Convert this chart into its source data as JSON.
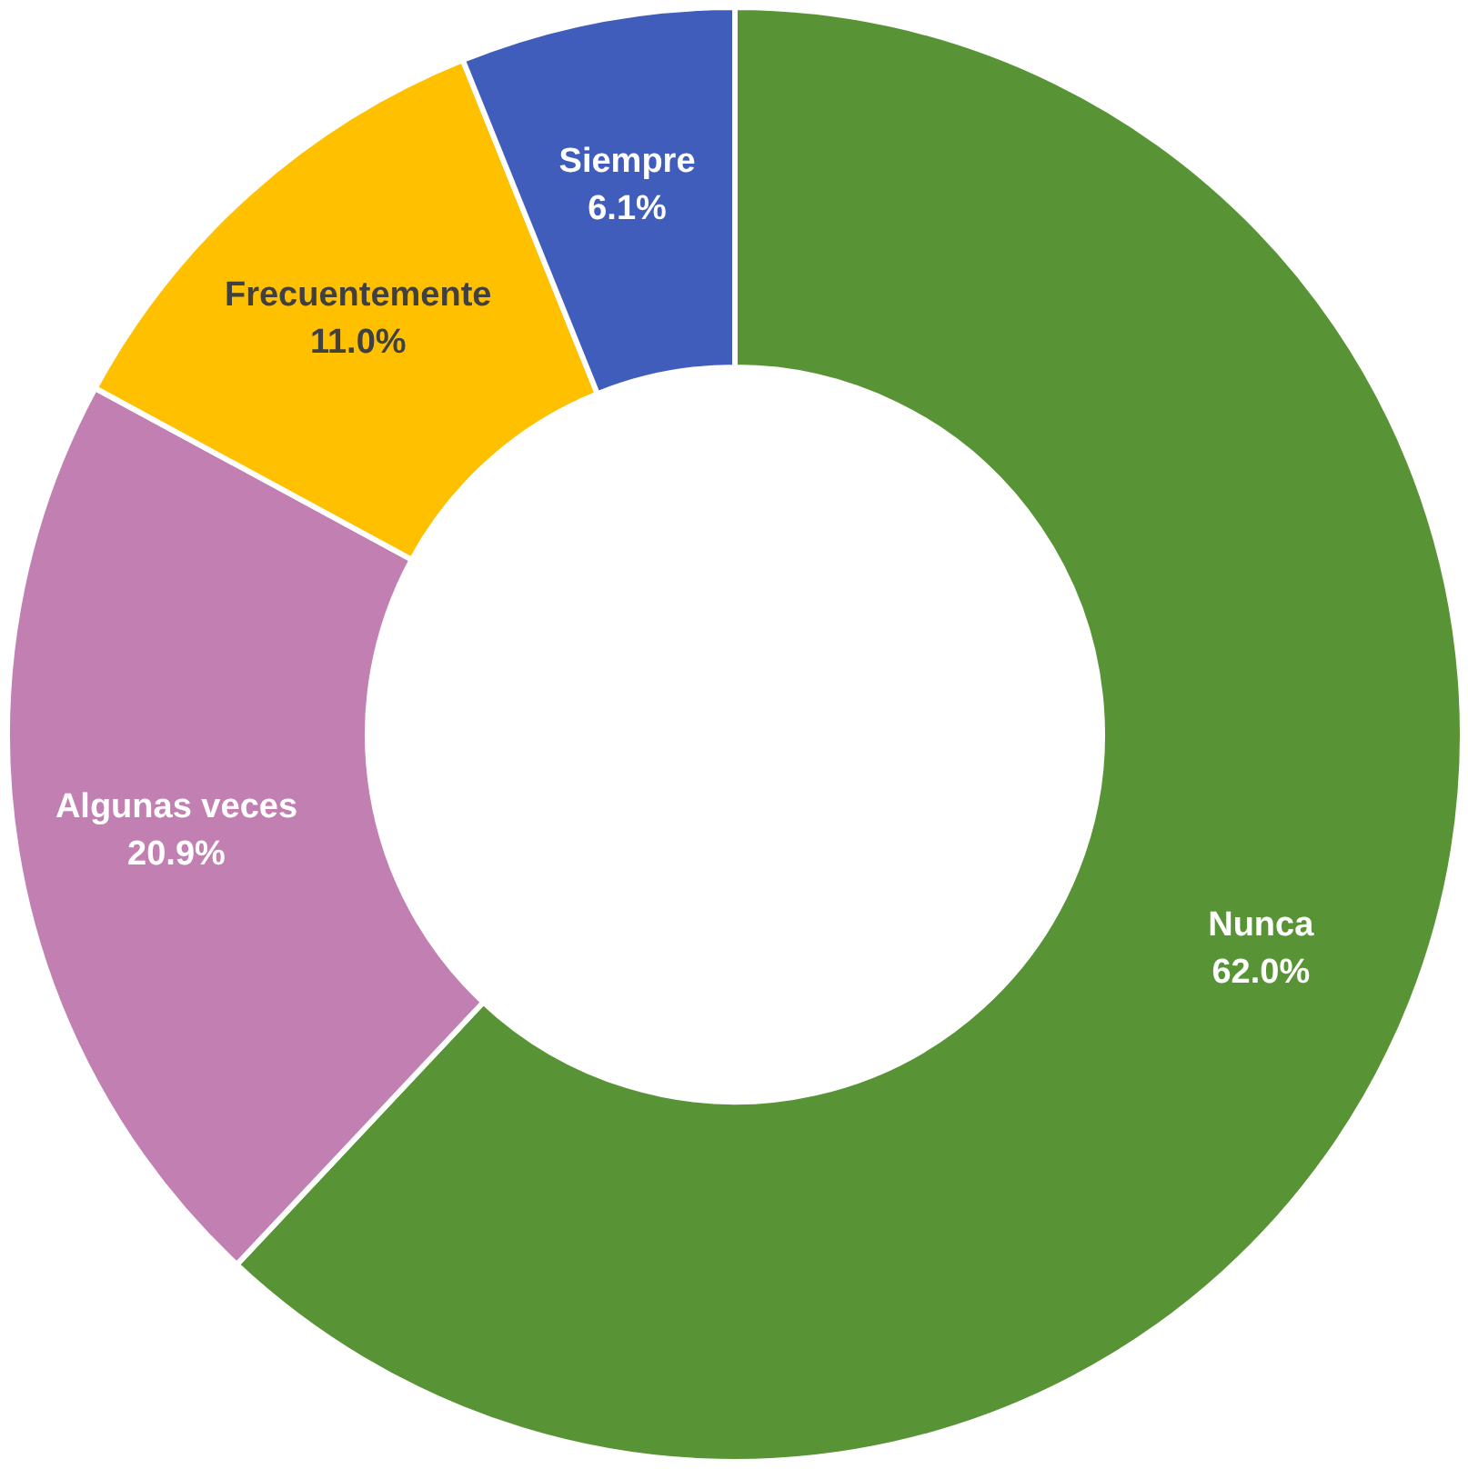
{
  "chart_data": {
    "type": "donut",
    "categories": [
      "Nunca",
      "Algunas veces",
      "Frecuentemente",
      "Siempre"
    ],
    "values": [
      62.0,
      20.9,
      11.0,
      6.1
    ],
    "colors": [
      "#589435",
      "#c27fb2",
      "#ffc000",
      "#405dbb"
    ],
    "value_labels": [
      "62.0%",
      "20.9%",
      "11.0%",
      "6.1%"
    ]
  }
}
